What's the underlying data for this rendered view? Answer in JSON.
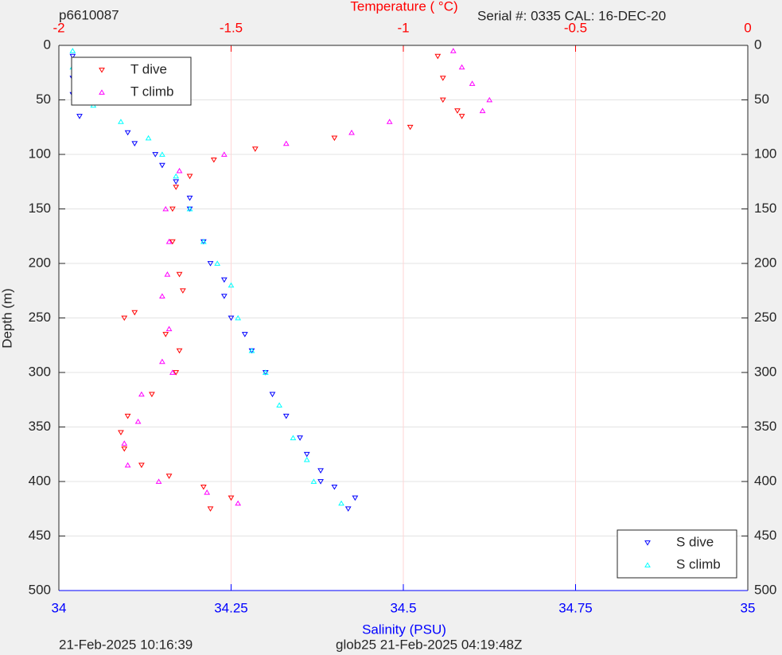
{
  "chart_data": {
    "type": "scatter",
    "title": "p6610087",
    "subtitle": "Serial #: 0335  CAL: 16-DEC-20",
    "x_label": "Salinity (PSU)",
    "x2_label": "Temperature (   °C)",
    "y_label": "Depth (m)",
    "footer_left": "21-Feb-2025 10:16:39",
    "footer_right": "glob25 21-Feb-2025 04:19:48Z",
    "xlim": [
      34,
      35
    ],
    "xticks": [
      34,
      34.25,
      34.5,
      34.75,
      35
    ],
    "x2lim": [
      -2,
      0
    ],
    "x2ticks": [
      -2,
      -1.5,
      -1,
      -0.5,
      0
    ],
    "ylim": [
      0,
      500
    ],
    "y_reversed": true,
    "yticks": [
      0,
      50,
      100,
      150,
      200,
      250,
      300,
      350,
      400,
      450,
      500
    ],
    "grid": true,
    "series": [
      {
        "name": "T dive",
        "color": "#ff0000",
        "marker": "v",
        "axis": "x2",
        "legend": "upper left",
        "x": [
          -0.9,
          -0.885,
          -0.885,
          -0.843,
          -0.83,
          -0.98,
          -1.2,
          -1.43,
          -1.55,
          -1.62,
          -1.66,
          -1.67,
          -1.67,
          -1.65,
          -1.64,
          -1.78,
          -1.81,
          -1.69,
          -1.65,
          -1.66,
          -1.73,
          -1.8,
          -1.82,
          -1.81,
          -1.76,
          -1.68,
          -1.58,
          -1.5,
          -1.56
        ],
        "y": [
          10,
          30,
          50,
          60,
          65,
          75,
          85,
          95,
          105,
          120,
          130,
          150,
          180,
          210,
          225,
          245,
          250,
          265,
          280,
          300,
          320,
          340,
          355,
          370,
          385,
          395,
          405,
          415,
          425
        ]
      },
      {
        "name": "T climb",
        "color": "#ff00ff",
        "marker": "^",
        "axis": "x2",
        "legend": "upper left",
        "x": [
          -0.855,
          -0.83,
          -0.8,
          -0.75,
          -0.77,
          -1.04,
          -1.15,
          -1.34,
          -1.52,
          -1.65,
          -1.69,
          -1.68,
          -1.685,
          -1.7,
          -1.68,
          -1.7,
          -1.67,
          -1.76,
          -1.77,
          -1.81,
          -1.8,
          -1.71,
          -1.57,
          -1.48
        ],
        "y": [
          5,
          20,
          35,
          50,
          60,
          70,
          80,
          90,
          100,
          115,
          150,
          180,
          210,
          230,
          260,
          290,
          300,
          320,
          345,
          365,
          385,
          400,
          410,
          420
        ]
      },
      {
        "name": "S dive",
        "color": "#0000ff",
        "marker": "v",
        "axis": "x",
        "legend": "lower right",
        "x": [
          34.02,
          34.02,
          34.02,
          34.03,
          34.03,
          34.1,
          34.11,
          34.14,
          34.15,
          34.17,
          34.19,
          34.19,
          34.21,
          34.22,
          34.24,
          34.24,
          34.25,
          34.27,
          34.28,
          34.3,
          34.31,
          34.33,
          34.35,
          34.36,
          34.38,
          34.38,
          34.4,
          34.43,
          34.42
        ],
        "y": [
          10,
          30,
          45,
          50,
          65,
          80,
          90,
          100,
          110,
          125,
          140,
          150,
          180,
          200,
          215,
          230,
          250,
          265,
          280,
          300,
          320,
          340,
          360,
          375,
          390,
          400,
          405,
          415,
          425
        ]
      },
      {
        "name": "S climb",
        "color": "#00ffff",
        "marker": "^",
        "axis": "x",
        "legend": "lower right",
        "x": [
          34.02,
          34.02,
          34.03,
          34.05,
          34.09,
          34.13,
          34.15,
          34.17,
          34.19,
          34.21,
          34.23,
          34.25,
          34.26,
          34.28,
          34.3,
          34.32,
          34.34,
          34.36,
          34.37,
          34.41
        ],
        "y": [
          5,
          20,
          40,
          55,
          70,
          85,
          100,
          120,
          150,
          180,
          200,
          220,
          250,
          280,
          300,
          330,
          360,
          380,
          400,
          420
        ]
      }
    ]
  }
}
